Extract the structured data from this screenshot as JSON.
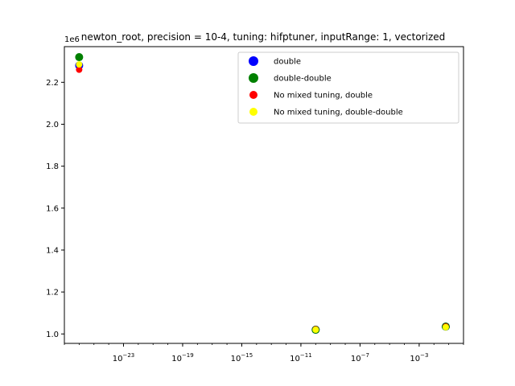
{
  "chart_data": {
    "type": "scatter",
    "title": "newton_root, precision = 10-4, tuning: hifptuner, inputRange: 1, vectorized",
    "xlabel": "",
    "ylabel": "",
    "xscale": "log",
    "xlim_exp": [
      -27,
      0
    ],
    "ylim": [
      0.955,
      2.37
    ],
    "y_offset_label": "1e6",
    "x_ticks": [
      {
        "exp": -23,
        "label": "10-23",
        "base": "10",
        "sup": "−23"
      },
      {
        "exp": -19,
        "label": "10-19",
        "base": "10",
        "sup": "−19"
      },
      {
        "exp": -15,
        "label": "10-15",
        "base": "10",
        "sup": "−15"
      },
      {
        "exp": -11,
        "label": "10-11",
        "base": "10",
        "sup": "−11"
      },
      {
        "exp": -7,
        "label": "10-7",
        "base": "10",
        "sup": "−7"
      },
      {
        "exp": -3,
        "label": "10-3",
        "base": "10",
        "sup": "−3"
      }
    ],
    "y_ticks": [
      {
        "value": 1.0,
        "label": "1.0"
      },
      {
        "value": 1.2,
        "label": "1.2"
      },
      {
        "value": 1.4,
        "label": "1.4"
      },
      {
        "value": 1.6,
        "label": "1.6"
      },
      {
        "value": 1.8,
        "label": "1.8"
      },
      {
        "value": 2.0,
        "label": "2.0"
      },
      {
        "value": 2.2,
        "label": "2.2"
      }
    ],
    "legend_position": "top-right",
    "series": [
      {
        "name": "double",
        "color": "#0000ff",
        "marker_size": "large",
        "points": [
          {
            "x_exp": -26,
            "y": 2.28
          },
          {
            "x_exp": -10,
            "y": 1.02
          },
          {
            "x_exp": -1.2,
            "y": 1.035
          }
        ]
      },
      {
        "name": "double-double",
        "color": "#008000",
        "marker_size": "large",
        "points": [
          {
            "x_exp": -26,
            "y": 2.32
          },
          {
            "x_exp": -10,
            "y": 1.02
          },
          {
            "x_exp": -1.2,
            "y": 1.035
          }
        ]
      },
      {
        "name": "No mixed tuning, double",
        "color": "#ff0000",
        "marker_size": "small",
        "points": [
          {
            "x_exp": -26,
            "y": 2.26
          },
          {
            "x_exp": -10,
            "y": 1.022
          },
          {
            "x_exp": -1.2,
            "y": 1.035
          }
        ]
      },
      {
        "name": "No mixed tuning, double-double",
        "color": "#ffff00",
        "marker_size": "small",
        "points": [
          {
            "x_exp": -26,
            "y": 2.285
          },
          {
            "x_exp": -10,
            "y": 1.02
          },
          {
            "x_exp": -1.2,
            "y": 1.032
          }
        ]
      }
    ]
  }
}
